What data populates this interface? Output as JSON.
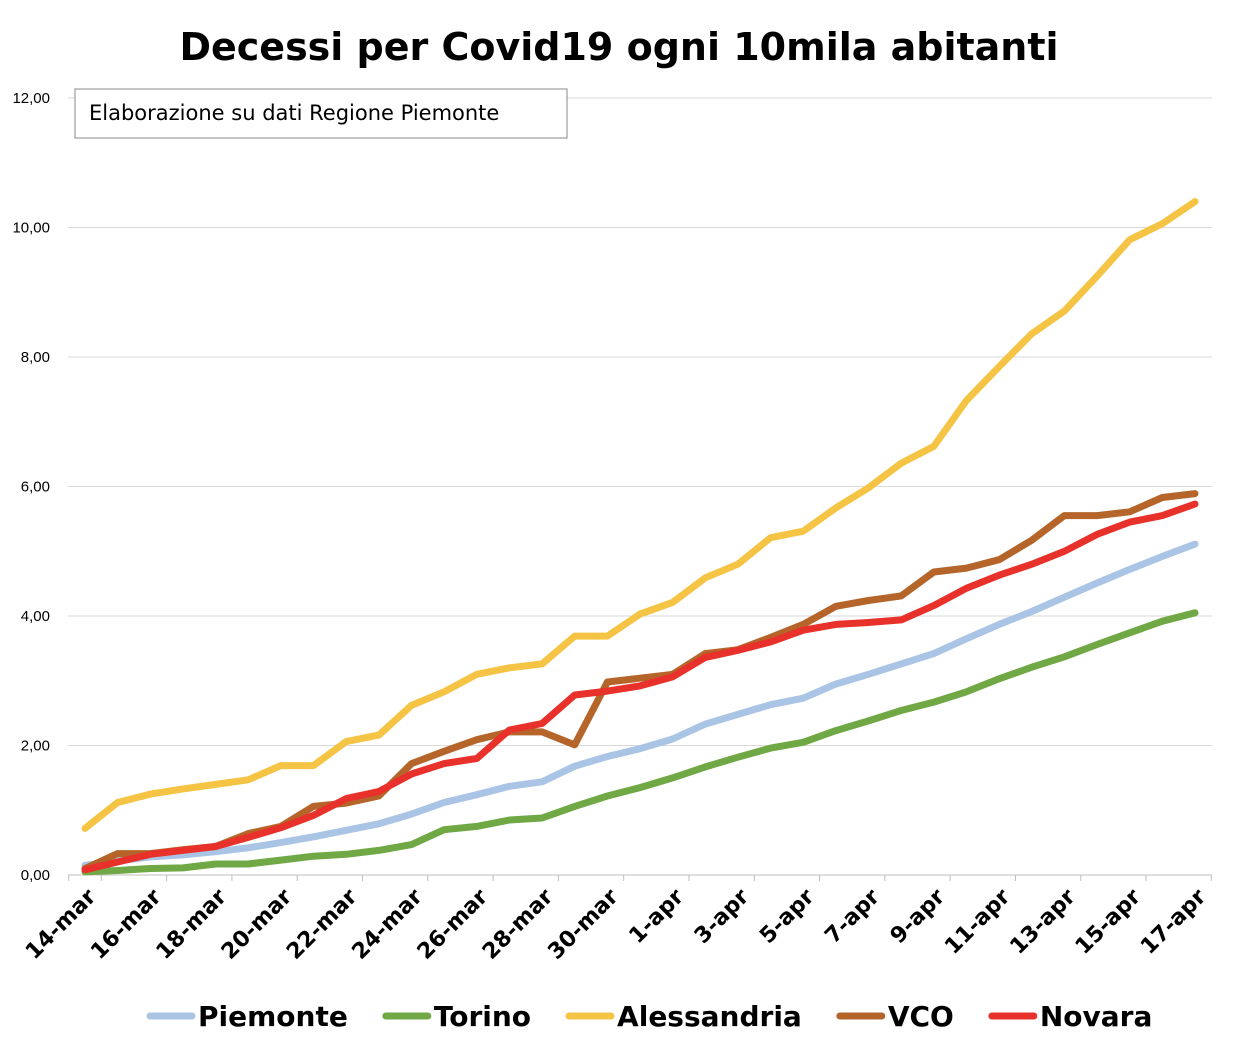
{
  "chart_data": {
    "type": "line",
    "title": "Decessi per Covid19 ogni 10mila abitanti",
    "annotation": "Elaborazione su dati Regione Piemonte",
    "ylim": [
      0,
      12
    ],
    "yticks": [
      "0,00",
      "2,00",
      "4,00",
      "6,00",
      "8,00",
      "10,00",
      "12,00"
    ],
    "x": [
      "14-mar",
      "15-mar",
      "16-mar",
      "17-mar",
      "18-mar",
      "19-mar",
      "20-mar",
      "21-mar",
      "22-mar",
      "23-mar",
      "24-mar",
      "25-mar",
      "26-mar",
      "27-mar",
      "28-mar",
      "29-mar",
      "30-mar",
      "31-mar",
      "1-apr",
      "2-apr",
      "3-apr",
      "4-apr",
      "5-apr",
      "6-apr",
      "7-apr",
      "8-apr",
      "9-apr",
      "10-apr",
      "11-apr",
      "12-apr",
      "13-apr",
      "14-apr",
      "15-apr",
      "16-apr",
      "17-apr"
    ],
    "xtick_labels": [
      "14-mar",
      "16-mar",
      "18-mar",
      "20-mar",
      "22-mar",
      "24-mar",
      "26-mar",
      "28-mar",
      "30-mar",
      "1-apr",
      "3-apr",
      "5-apr",
      "7-apr",
      "9-apr",
      "11-apr",
      "13-apr",
      "15-apr",
      "17-apr"
    ],
    "grid": true,
    "legend_position": "bottom",
    "series": [
      {
        "name": "Piemonte",
        "color": "#a9c4e4",
        "values": [
          0.15,
          0.22,
          0.28,
          0.31,
          0.36,
          0.42,
          0.5,
          0.59,
          0.69,
          0.79,
          0.94,
          1.12,
          1.24,
          1.37,
          1.44,
          1.68,
          1.83,
          1.95,
          2.1,
          2.33,
          2.48,
          2.63,
          2.73,
          2.95,
          3.1,
          3.26,
          3.42,
          3.65,
          3.87,
          4.07,
          4.29,
          4.51,
          4.72,
          4.92,
          5.11
        ]
      },
      {
        "name": "Torino",
        "color": "#70a845",
        "values": [
          0.05,
          0.07,
          0.1,
          0.11,
          0.17,
          0.17,
          0.23,
          0.29,
          0.32,
          0.38,
          0.47,
          0.7,
          0.75,
          0.85,
          0.88,
          1.06,
          1.22,
          1.35,
          1.5,
          1.67,
          1.82,
          1.96,
          2.05,
          2.23,
          2.38,
          2.54,
          2.67,
          2.83,
          3.03,
          3.21,
          3.37,
          3.56,
          3.74,
          3.92,
          4.05
        ]
      },
      {
        "name": "Alessandria",
        "color": "#f5c445",
        "values": [
          0.72,
          1.12,
          1.25,
          1.33,
          1.4,
          1.47,
          1.69,
          1.69,
          2.06,
          2.16,
          2.62,
          2.83,
          3.1,
          3.2,
          3.26,
          3.69,
          3.69,
          4.03,
          4.21,
          4.59,
          4.8,
          5.21,
          5.31,
          5.67,
          5.98,
          6.36,
          6.62,
          7.33,
          7.85,
          8.36,
          8.71,
          9.25,
          9.81,
          10.06,
          10.4
        ]
      },
      {
        "name": "VCO",
        "color": "#b5652a",
        "values": [
          0.1,
          0.33,
          0.33,
          0.39,
          0.44,
          0.64,
          0.75,
          1.06,
          1.11,
          1.22,
          1.72,
          1.91,
          2.09,
          2.21,
          2.21,
          2.01,
          2.98,
          3.04,
          3.1,
          3.42,
          3.48,
          3.67,
          3.87,
          4.15,
          4.24,
          4.31,
          4.68,
          4.74,
          4.87,
          5.17,
          5.55,
          5.55,
          5.61,
          5.83,
          5.89
        ]
      },
      {
        "name": "Novara",
        "color": "#e8312a",
        "values": [
          0.08,
          0.2,
          0.32,
          0.38,
          0.44,
          0.58,
          0.73,
          0.92,
          1.18,
          1.29,
          1.56,
          1.72,
          1.8,
          2.24,
          2.34,
          2.78,
          2.84,
          2.92,
          3.06,
          3.36,
          3.47,
          3.6,
          3.78,
          3.87,
          3.9,
          3.94,
          4.16,
          4.43,
          4.63,
          4.8,
          5.0,
          5.26,
          5.45,
          5.55,
          5.73
        ]
      }
    ]
  }
}
